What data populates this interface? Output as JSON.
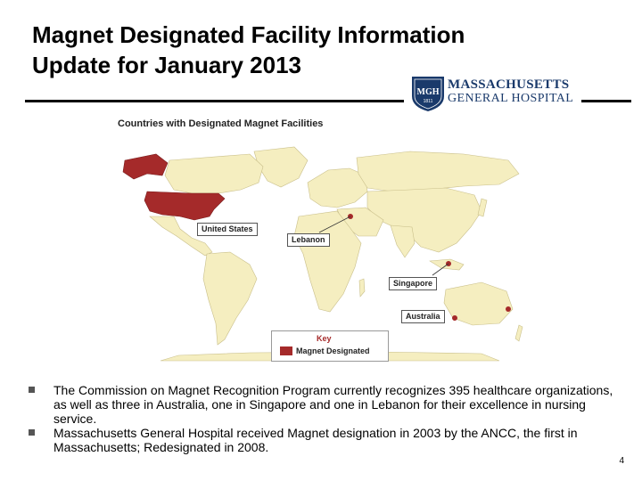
{
  "title_line1": "Magnet Designated Facility Information",
  "title_line2": "Update for January 2013",
  "logo": {
    "crest": "MGH",
    "crest_year": "1811",
    "line1": "MASSACHUSETTS",
    "line2": "GENERAL HOSPITAL"
  },
  "map": {
    "title": "Countries with Designated Magnet Facilities",
    "highlight_color": "#a52a2a",
    "land_color": "#f5eec0",
    "ocean_color": "#ffffff",
    "labels": {
      "united_states": "United States",
      "lebanon": "Lebanon",
      "singapore": "Singapore",
      "australia": "Australia"
    },
    "key": {
      "title": "Key",
      "label": "Magnet Designated"
    }
  },
  "bullets": [
    "The Commission on Magnet Recognition Program currently recognizes 395 healthcare organizations, as well as three in Australia, one in Singapore and one in Lebanon for their excellence in nursing service.",
    "Massachusetts General Hospital received Magnet designation in 2003 by the ANCC, the first in Massachusetts; Redesignated in 2008."
  ],
  "page_number": "4"
}
